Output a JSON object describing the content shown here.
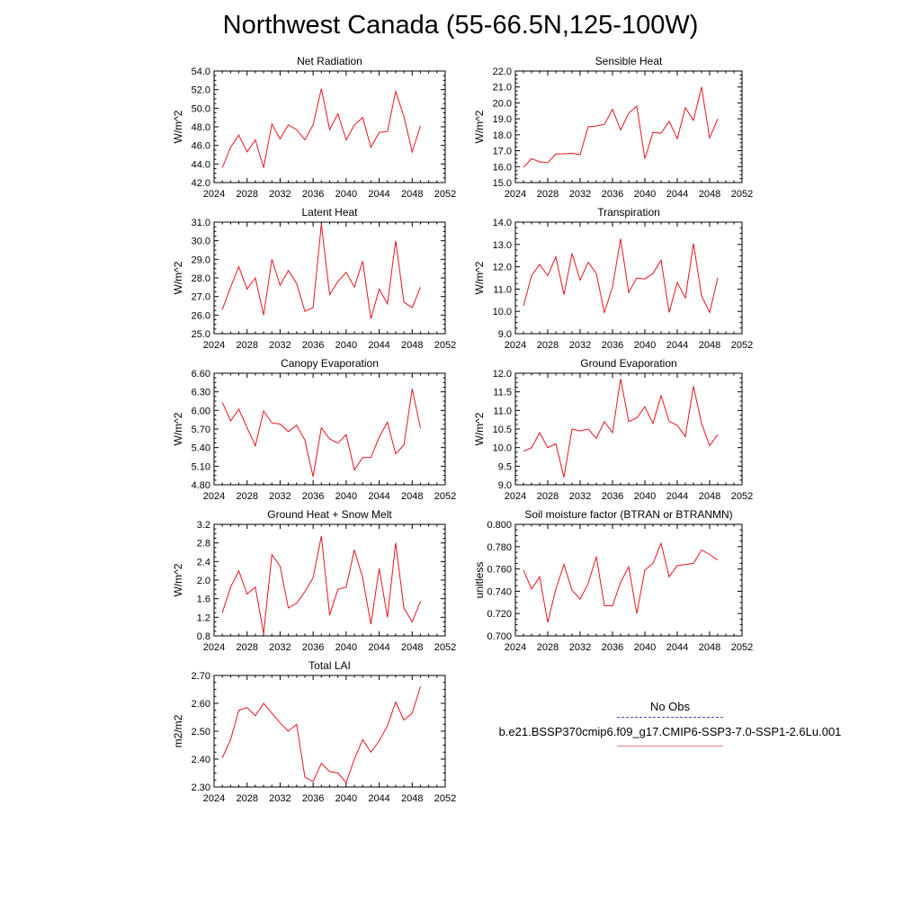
{
  "title": "Northwest Canada (55-66.5N,125-100W)",
  "legend": {
    "obs_label": "No Obs",
    "obs_color": "#4b4bb8",
    "case_label": "b.e21.BSSP370cmip6.f09_g17.CMIP6-SSP3-7.0-SSP1-2.6Lu.001",
    "case_color": "#f08080"
  },
  "chart_data": [
    {
      "type": "line",
      "title": "Net Radiation",
      "ylabel": "W/m^2",
      "xlim": [
        2024,
        2052
      ],
      "ylim": [
        42.0,
        54.0
      ],
      "xticks": [
        2024,
        2028,
        2032,
        2036,
        2040,
        2044,
        2048,
        2052
      ],
      "yticks": [
        42.0,
        44.0,
        46.0,
        48.0,
        50.0,
        52.0,
        54.0
      ],
      "ytick_labels": [
        "42.0",
        "44.0",
        "46.0",
        "48.0",
        "50.0",
        "52.0",
        "54.0"
      ],
      "grid": false,
      "series": [
        {
          "color": "#e8141c",
          "x": [
            2025,
            2026,
            2027,
            2028,
            2029,
            2030,
            2031,
            2032,
            2033,
            2034,
            2035,
            2036,
            2037,
            2038,
            2039,
            2040,
            2041,
            2042,
            2043,
            2044,
            2045,
            2046,
            2047,
            2048,
            2049
          ],
          "values": [
            43.6,
            45.8,
            47.1,
            45.3,
            46.6,
            43.6,
            48.3,
            46.7,
            48.2,
            47.7,
            46.6,
            48.2,
            52.1,
            47.7,
            49.4,
            46.6,
            48.2,
            49.0,
            45.8,
            47.4,
            47.5,
            51.8,
            49.1,
            45.3,
            48.1
          ]
        }
      ]
    },
    {
      "type": "line",
      "title": "Sensible Heat",
      "ylabel": "W/m^2",
      "xlim": [
        2024,
        2052
      ],
      "ylim": [
        15.0,
        22.0
      ],
      "xticks": [
        2024,
        2028,
        2032,
        2036,
        2040,
        2044,
        2048,
        2052
      ],
      "yticks": [
        15.0,
        16.0,
        17.0,
        18.0,
        19.0,
        20.0,
        21.0,
        22.0
      ],
      "ytick_labels": [
        "15.0",
        "16.0",
        "17.0",
        "18.0",
        "19.0",
        "20.0",
        "21.0",
        "22.0"
      ],
      "grid": false,
      "series": [
        {
          "color": "#e8141c",
          "x": [
            2025,
            2026,
            2027,
            2028,
            2029,
            2030,
            2031,
            2032,
            2033,
            2034,
            2035,
            2036,
            2037,
            2038,
            2039,
            2040,
            2041,
            2042,
            2043,
            2044,
            2045,
            2046,
            2047,
            2048,
            2049
          ],
          "values": [
            15.95,
            16.5,
            16.3,
            16.25,
            16.8,
            16.8,
            16.85,
            16.75,
            18.5,
            18.55,
            18.65,
            19.6,
            18.3,
            19.35,
            19.8,
            16.5,
            18.15,
            18.1,
            18.85,
            17.75,
            19.7,
            18.9,
            21.0,
            17.8,
            19.0
          ]
        }
      ]
    },
    {
      "type": "line",
      "title": "Latent Heat",
      "ylabel": "W/m^2",
      "xlim": [
        2024,
        2052
      ],
      "ylim": [
        25.0,
        31.0
      ],
      "xticks": [
        2024,
        2028,
        2032,
        2036,
        2040,
        2044,
        2048,
        2052
      ],
      "yticks": [
        25.0,
        26.0,
        27.0,
        28.0,
        29.0,
        30.0,
        31.0
      ],
      "ytick_labels": [
        "25.0",
        "26.0",
        "27.0",
        "28.0",
        "29.0",
        "30.0",
        "31.0"
      ],
      "grid": false,
      "series": [
        {
          "color": "#e8141c",
          "x": [
            2025,
            2026,
            2027,
            2028,
            2029,
            2030,
            2031,
            2032,
            2033,
            2034,
            2035,
            2036,
            2037,
            2038,
            2039,
            2040,
            2041,
            2042,
            2043,
            2044,
            2045,
            2046,
            2047,
            2048,
            2049
          ],
          "values": [
            26.3,
            27.5,
            28.6,
            27.4,
            28.0,
            26.0,
            29.0,
            27.6,
            28.4,
            27.7,
            26.2,
            26.4,
            30.9,
            27.1,
            27.8,
            28.3,
            27.5,
            28.9,
            25.8,
            27.4,
            26.6,
            30.0,
            26.7,
            26.4,
            27.5
          ]
        }
      ]
    },
    {
      "type": "line",
      "title": "Transpiration",
      "ylabel": "W/m^2",
      "xlim": [
        2024,
        2052
      ],
      "ylim": [
        9.0,
        14.0
      ],
      "xticks": [
        2024,
        2028,
        2032,
        2036,
        2040,
        2044,
        2048,
        2052
      ],
      "yticks": [
        9.0,
        10.0,
        11.0,
        12.0,
        13.0,
        14.0
      ],
      "ytick_labels": [
        "9.0",
        "10.0",
        "11.0",
        "12.0",
        "13.0",
        "14.0"
      ],
      "grid": false,
      "series": [
        {
          "color": "#e8141c",
          "x": [
            2025,
            2026,
            2027,
            2028,
            2029,
            2030,
            2031,
            2032,
            2033,
            2034,
            2035,
            2036,
            2037,
            2038,
            2039,
            2040,
            2041,
            2042,
            2043,
            2044,
            2045,
            2046,
            2047,
            2048,
            2049
          ],
          "values": [
            10.25,
            11.6,
            12.1,
            11.6,
            12.45,
            10.75,
            12.6,
            11.4,
            12.2,
            11.7,
            9.95,
            11.1,
            13.25,
            10.85,
            11.5,
            11.45,
            11.7,
            12.3,
            9.95,
            11.3,
            10.6,
            13.05,
            10.7,
            9.95,
            11.5
          ]
        }
      ]
    },
    {
      "type": "line",
      "title": "Canopy Evaporation",
      "ylabel": "W/m^2",
      "xlim": [
        2024,
        2052
      ],
      "ylim": [
        4.8,
        6.6
      ],
      "xticks": [
        2024,
        2028,
        2032,
        2036,
        2040,
        2044,
        2048,
        2052
      ],
      "yticks": [
        4.8,
        5.1,
        5.4,
        5.7,
        6.0,
        6.3,
        6.6
      ],
      "ytick_labels": [
        "4.80",
        "5.10",
        "5.40",
        "5.70",
        "6.00",
        "6.30",
        "6.60"
      ],
      "grid": false,
      "series": [
        {
          "color": "#e8141c",
          "x": [
            2025,
            2026,
            2027,
            2028,
            2029,
            2030,
            2031,
            2032,
            2033,
            2034,
            2035,
            2036,
            2037,
            2038,
            2039,
            2040,
            2041,
            2042,
            2043,
            2044,
            2045,
            2046,
            2047,
            2048,
            2049
          ],
          "values": [
            6.13,
            5.83,
            6.02,
            5.72,
            5.43,
            5.99,
            5.8,
            5.78,
            5.66,
            5.76,
            5.52,
            4.93,
            5.72,
            5.54,
            5.47,
            5.61,
            5.04,
            5.24,
            5.24,
            5.57,
            5.81,
            5.3,
            5.44,
            6.35,
            5.71
          ]
        }
      ]
    },
    {
      "type": "line",
      "title": "Ground Evaporation",
      "ylabel": "W/m^2",
      "xlim": [
        2024,
        2052
      ],
      "ylim": [
        9.0,
        12.0
      ],
      "xticks": [
        2024,
        2028,
        2032,
        2036,
        2040,
        2044,
        2048,
        2052
      ],
      "yticks": [
        9.0,
        9.5,
        10.0,
        10.5,
        11.0,
        11.5,
        12.0
      ],
      "ytick_labels": [
        "9.0",
        "9.5",
        "10.0",
        "10.5",
        "11.0",
        "11.5",
        "12.0"
      ],
      "grid": false,
      "series": [
        {
          "color": "#e8141c",
          "x": [
            2025,
            2026,
            2027,
            2028,
            2029,
            2030,
            2031,
            2032,
            2033,
            2034,
            2035,
            2036,
            2037,
            2038,
            2039,
            2040,
            2041,
            2042,
            2043,
            2044,
            2045,
            2046,
            2047,
            2048,
            2049
          ],
          "values": [
            9.9,
            10.0,
            10.4,
            10.0,
            10.1,
            9.2,
            10.5,
            10.45,
            10.5,
            10.25,
            10.7,
            10.4,
            11.85,
            10.7,
            10.8,
            11.1,
            10.65,
            11.4,
            10.7,
            10.6,
            10.3,
            11.65,
            10.65,
            10.05,
            10.35
          ]
        }
      ]
    },
    {
      "type": "line",
      "title": "Ground Heat + Snow Melt",
      "ylabel": "W/m^2",
      "xlim": [
        2024,
        2052
      ],
      "ylim": [
        0.8,
        3.2
      ],
      "xticks": [
        2024,
        2028,
        2032,
        2036,
        2040,
        2044,
        2048,
        2052
      ],
      "yticks": [
        0.8,
        1.2,
        1.6,
        2.0,
        2.4,
        2.8,
        3.2
      ],
      "ytick_labels": [
        "0.8",
        "1.2",
        "1.6",
        "2.0",
        "2.4",
        "2.8",
        "3.2"
      ],
      "grid": false,
      "series": [
        {
          "color": "#e8141c",
          "x": [
            2025,
            2026,
            2027,
            2028,
            2029,
            2030,
            2031,
            2032,
            2033,
            2034,
            2035,
            2036,
            2037,
            2038,
            2039,
            2040,
            2041,
            2042,
            2043,
            2044,
            2045,
            2046,
            2047,
            2048,
            2049
          ],
          "values": [
            1.3,
            1.85,
            2.2,
            1.7,
            1.85,
            0.85,
            2.55,
            2.3,
            1.4,
            1.5,
            1.75,
            2.05,
            2.95,
            1.25,
            1.8,
            1.85,
            2.65,
            2.05,
            1.05,
            2.25,
            1.2,
            2.8,
            1.4,
            1.1,
            1.55
          ]
        }
      ]
    },
    {
      "type": "line",
      "title": "Soil moisture factor (BTRAN or BTRANMN)",
      "ylabel": "unitless",
      "xlim": [
        2024,
        2052
      ],
      "ylim": [
        0.7,
        0.8
      ],
      "xticks": [
        2024,
        2028,
        2032,
        2036,
        2040,
        2044,
        2048,
        2052
      ],
      "yticks": [
        0.7,
        0.72,
        0.74,
        0.76,
        0.78,
        0.8
      ],
      "ytick_labels": [
        "0.700",
        "0.720",
        "0.740",
        "0.760",
        "0.780",
        "0.800"
      ],
      "grid": false,
      "series": [
        {
          "color": "#e8141c",
          "x": [
            2025,
            2026,
            2027,
            2028,
            2029,
            2030,
            2031,
            2032,
            2033,
            2034,
            2035,
            2036,
            2037,
            2038,
            2039,
            2040,
            2041,
            2042,
            2043,
            2044,
            2045,
            2046,
            2047,
            2048,
            2049
          ],
          "values": [
            0.759,
            0.742,
            0.753,
            0.712,
            0.742,
            0.764,
            0.741,
            0.733,
            0.747,
            0.771,
            0.727,
            0.727,
            0.748,
            0.762,
            0.72,
            0.759,
            0.765,
            0.783,
            0.753,
            0.763,
            0.764,
            0.765,
            0.777,
            0.773,
            0.768
          ]
        }
      ]
    },
    {
      "type": "line",
      "title": "Total LAI",
      "ylabel": "m2/m2",
      "xlim": [
        2024,
        2052
      ],
      "ylim": [
        2.3,
        2.7
      ],
      "xticks": [
        2024,
        2028,
        2032,
        2036,
        2040,
        2044,
        2048,
        2052
      ],
      "yticks": [
        2.3,
        2.4,
        2.5,
        2.6,
        2.7
      ],
      "ytick_labels": [
        "2.30",
        "2.40",
        "2.50",
        "2.60",
        "2.70"
      ],
      "grid": false,
      "series": [
        {
          "color": "#e8141c",
          "x": [
            2025,
            2026,
            2027,
            2028,
            2029,
            2030,
            2031,
            2032,
            2033,
            2034,
            2035,
            2036,
            2037,
            2038,
            2039,
            2040,
            2041,
            2042,
            2043,
            2044,
            2045,
            2046,
            2047,
            2048,
            2049
          ],
          "values": [
            2.405,
            2.47,
            2.575,
            2.585,
            2.555,
            2.6,
            2.565,
            2.53,
            2.5,
            2.525,
            2.335,
            2.32,
            2.385,
            2.355,
            2.35,
            2.315,
            2.4,
            2.47,
            2.425,
            2.465,
            2.52,
            2.605,
            2.54,
            2.565,
            2.66
          ]
        }
      ]
    }
  ]
}
